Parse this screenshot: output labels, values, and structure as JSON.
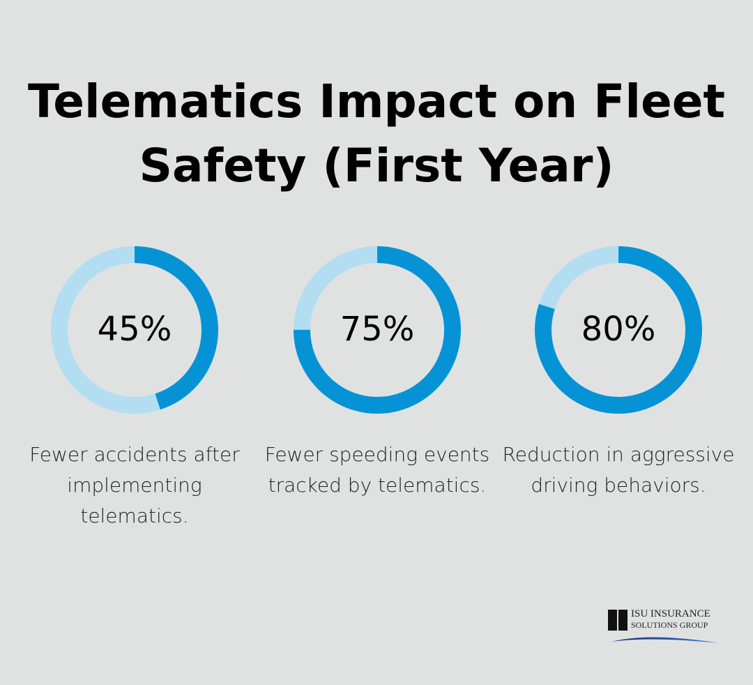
{
  "title": "Telematics Impact on Fleet Safety (First Year)",
  "colors": {
    "background": "#e0e2e1",
    "filled": "#0593d6",
    "remaining": "#b3def2"
  },
  "chart_data": {
    "type": "donut",
    "title": "Telematics Impact on Fleet Safety (First Year)",
    "items": [
      {
        "value": 45,
        "label": "45%",
        "description": "Fewer accidents after implementing telematics."
      },
      {
        "value": 75,
        "label": "75%",
        "description": "Fewer speeding events tracked by telematics."
      },
      {
        "value": 80,
        "label": "80%",
        "description": "Reduction in aggressive driving behaviors."
      }
    ]
  },
  "logo": {
    "line1": "ISU INSURANCE",
    "line2": "SOLUTIONS GROUP",
    "mark": "ISU"
  }
}
